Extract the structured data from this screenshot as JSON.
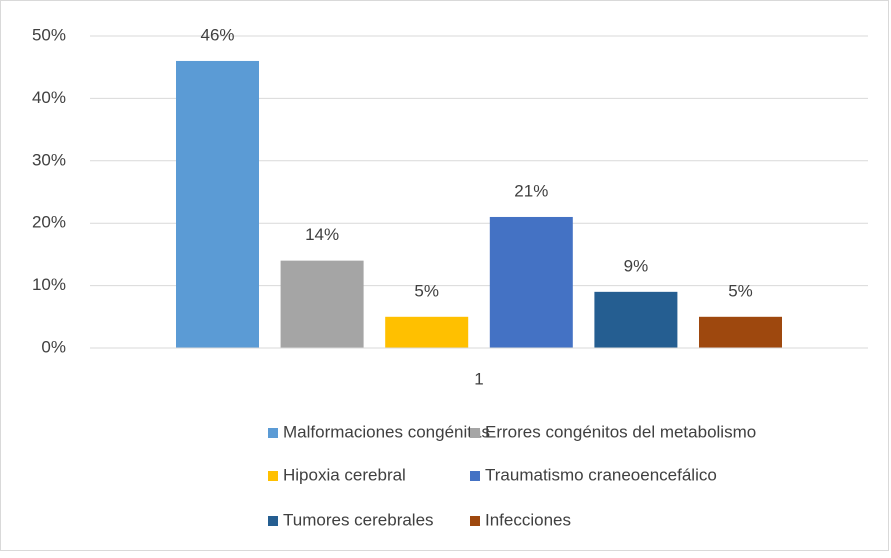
{
  "chart_data": {
    "type": "bar",
    "categories": [
      "1"
    ],
    "series": [
      {
        "name": "Malformaciones congénitas",
        "color": "#5b9bd5",
        "values": [
          46
        ],
        "value_labels": [
          "46%"
        ]
      },
      {
        "name": "Errores congénitos del metabolismo",
        "color": "#a5a5a5",
        "values": [
          14
        ],
        "value_labels": [
          "14%"
        ]
      },
      {
        "name": "Hipoxia cerebral",
        "color": "#ffc000",
        "values": [
          5
        ],
        "value_labels": [
          "5%"
        ]
      },
      {
        "name": "Traumatismo craneoencefálico",
        "color": "#4472c4",
        "values": [
          21
        ],
        "value_labels": [
          "21%"
        ]
      },
      {
        "name": "Tumores cerebrales",
        "color": "#255e91",
        "values": [
          9
        ],
        "value_labels": [
          "9%"
        ]
      },
      {
        "name": "Infecciones",
        "color": "#9e480e",
        "values": [
          5
        ],
        "value_labels": [
          "5%"
        ]
      }
    ],
    "ylim": [
      0,
      50
    ],
    "yticks": [
      {
        "value": 0,
        "label": "0%"
      },
      {
        "value": 10,
        "label": "10%"
      },
      {
        "value": 20,
        "label": "20%"
      },
      {
        "value": 30,
        "label": "30%"
      },
      {
        "value": 40,
        "label": "40%"
      },
      {
        "value": 50,
        "label": "50%"
      }
    ],
    "grid": true,
    "legend": "bottom"
  }
}
